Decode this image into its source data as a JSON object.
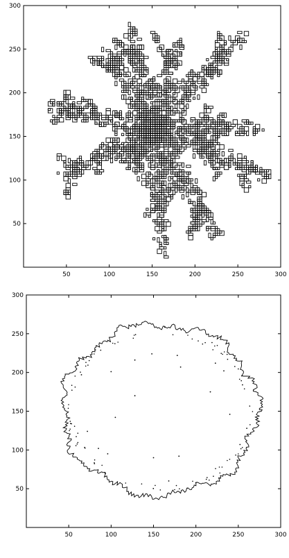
{
  "chart_data": [
    {
      "type": "scatter",
      "title": "",
      "xlabel": "",
      "ylabel": "",
      "xlim": [
        0,
        300
      ],
      "ylim": [
        0,
        300
      ],
      "grid": false,
      "x_ticks": [
        50,
        100,
        150,
        200,
        250,
        300
      ],
      "y_ticks": [
        50,
        100,
        150,
        200,
        250,
        300
      ],
      "shape": "branched fractal cluster outline (dendritic, six arms)",
      "center": [
        150,
        160
      ],
      "arms": [
        {
          "tip": [
            30,
            188
          ]
        },
        {
          "tip": [
            95,
            250
          ]
        },
        {
          "tip": [
            122,
            275
          ]
        },
        {
          "tip": [
            178,
            258
          ]
        },
        {
          "tip": [
            255,
            268
          ]
        },
        {
          "tip": [
            275,
            162
          ]
        },
        {
          "tip": [
            285,
            105
          ]
        },
        {
          "tip": [
            225,
            35
          ]
        },
        {
          "tip": [
            160,
            18
          ]
        },
        {
          "tip": [
            45,
            108
          ]
        },
        {
          "tip": [
            120,
            115
          ]
        }
      ]
    },
    {
      "type": "scatter",
      "title": "",
      "xlabel": "",
      "ylabel": "",
      "xlim": [
        0,
        300
      ],
      "ylim": [
        0,
        300
      ],
      "grid": false,
      "x_ticks": [
        50,
        100,
        150,
        200,
        250,
        300
      ],
      "y_ticks": [
        50,
        100,
        150,
        200,
        250,
        300
      ],
      "shape": "roughly circular cluster boundary with rough edge",
      "center": [
        158,
        152
      ],
      "radius": 110,
      "interior_points": [
        [
          148,
          224
        ],
        [
          182,
          207
        ],
        [
          217,
          175
        ],
        [
          260,
          128
        ],
        [
          178,
          222
        ],
        [
          105,
          142
        ],
        [
          128,
          216
        ],
        [
          100,
          201
        ],
        [
          128,
          170
        ],
        [
          72,
          124
        ],
        [
          85,
          102
        ],
        [
          180,
          92
        ],
        [
          150,
          90
        ],
        [
          168,
          60
        ],
        [
          252,
          107
        ],
        [
          255,
          184
        ],
        [
          65,
          197
        ],
        [
          223,
          212
        ],
        [
          233,
          202
        ],
        [
          240,
          146
        ],
        [
          96,
          95
        ]
      ]
    }
  ]
}
